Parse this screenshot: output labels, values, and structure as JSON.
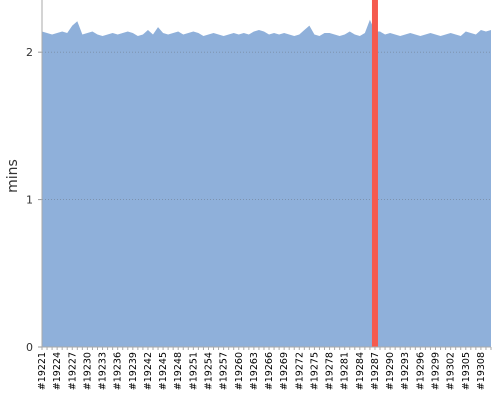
{
  "chart_data": {
    "type": "area",
    "y_label": "mins",
    "categories": [
      "#19221",
      null,
      null,
      "#19224",
      null,
      null,
      "#19227",
      null,
      null,
      "#19230",
      null,
      null,
      "#19233",
      null,
      null,
      "#19236",
      null,
      null,
      "#19239",
      null,
      null,
      "#19242",
      null,
      null,
      "#19245",
      null,
      null,
      "#19248",
      null,
      null,
      "#19251",
      null,
      null,
      "#19254",
      null,
      null,
      "#19257",
      null,
      null,
      "#19260",
      null,
      null,
      "#19263",
      null,
      null,
      "#19266",
      null,
      null,
      "#19269",
      null,
      null,
      "#19272",
      null,
      null,
      "#19275",
      null,
      null,
      "#19278",
      null,
      null,
      "#19281",
      null,
      null,
      "#19284",
      null,
      null,
      "#19287",
      null,
      null,
      "#19290",
      null,
      null,
      "#19293",
      null,
      null,
      "#19296",
      null,
      null,
      "#19299",
      null,
      null,
      "#19302",
      null,
      null,
      "#19305",
      null,
      null,
      "#19308",
      null,
      null
    ],
    "values": [
      2.14,
      2.13,
      2.12,
      2.13,
      2.14,
      2.13,
      2.18,
      2.21,
      2.12,
      2.13,
      2.14,
      2.12,
      2.11,
      2.12,
      2.13,
      2.12,
      2.13,
      2.14,
      2.13,
      2.11,
      2.12,
      2.15,
      2.12,
      2.17,
      2.13,
      2.12,
      2.13,
      2.14,
      2.12,
      2.13,
      2.14,
      2.13,
      2.11,
      2.12,
      2.13,
      2.12,
      2.11,
      2.12,
      2.13,
      2.12,
      2.13,
      2.12,
      2.14,
      2.15,
      2.14,
      2.12,
      2.13,
      2.12,
      2.13,
      2.12,
      2.11,
      2.12,
      2.15,
      2.18,
      2.12,
      2.11,
      2.13,
      2.13,
      2.12,
      2.11,
      2.12,
      2.14,
      2.12,
      2.11,
      2.13,
      2.22,
      2.14,
      2.14,
      2.12,
      2.13,
      2.12,
      2.11,
      2.12,
      2.13,
      2.12,
      2.11,
      2.12,
      2.13,
      2.12,
      2.11,
      2.12,
      2.13,
      2.12,
      2.11,
      2.14,
      2.13,
      2.12,
      2.15,
      2.14,
      2.15
    ],
    "color": "#8fb0da",
    "ylim": [
      0,
      2.32
    ],
    "yticks": [
      0,
      1,
      2
    ],
    "grid": true,
    "markers": [
      {
        "x": "#19287",
        "color": "#f55a4e"
      }
    ]
  }
}
